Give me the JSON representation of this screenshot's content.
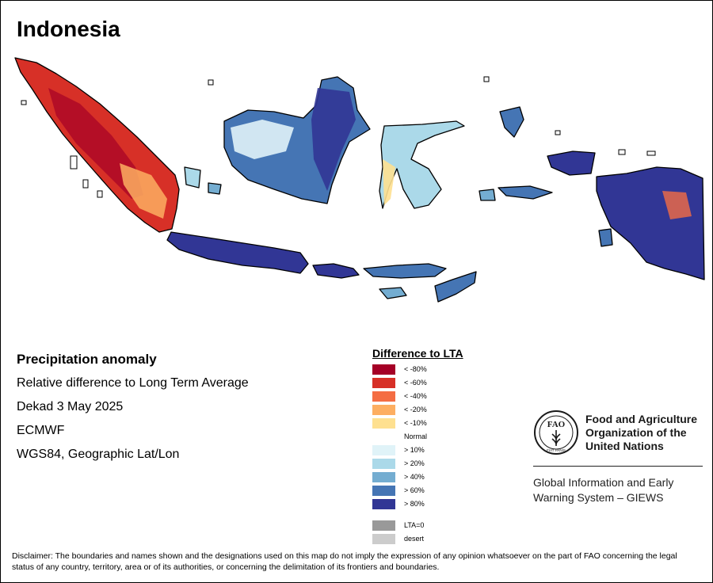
{
  "title": "Indonesia",
  "info": {
    "line1": "Precipitation anomaly",
    "line2": "Relative difference to Long Term Average",
    "line3": "Dekad 3 May 2025",
    "line4": "ECMWF",
    "line5": "WGS84, Geographic Lat/Lon"
  },
  "legend": {
    "title": "Difference to LTA",
    "items": [
      {
        "label": "< -80%",
        "color": "#a50026"
      },
      {
        "label": "< -60%",
        "color": "#d73027"
      },
      {
        "label": "< -40%",
        "color": "#f46d43"
      },
      {
        "label": "< -20%",
        "color": "#fdae61"
      },
      {
        "label": "< -10%",
        "color": "#fee090"
      },
      {
        "label": "Normal",
        "color": "#ffffff"
      },
      {
        "label": "> 10%",
        "color": "#e0f3f8"
      },
      {
        "label": "> 20%",
        "color": "#abd9e9"
      },
      {
        "label": "> 40%",
        "color": "#74add1"
      },
      {
        "label": "> 60%",
        "color": "#4575b4"
      },
      {
        "label": "> 80%",
        "color": "#313695"
      }
    ],
    "extra": [
      {
        "label": "LTA=0",
        "color": "#999999"
      },
      {
        "label": "desert",
        "color": "#cccccc"
      }
    ]
  },
  "fao": {
    "name_line1": "Food and Agriculture",
    "name_line2": "Organization of the",
    "name_line3": "United Nations",
    "giews_line1": "Global Information and Early",
    "giews_line2": "Warning System – GIEWS",
    "logo_letters": "FAO",
    "logo_motto": "FIAT PANIS"
  },
  "disclaimer": "Disclaimer: The boundaries and names shown and the designations used on this map do not imply the expression of any opinion whatsoever on the part of FAO concerning the legal status of any country, territory, area or of its authorities, or concerning the delimitation of its frontiers and boundaries."
}
